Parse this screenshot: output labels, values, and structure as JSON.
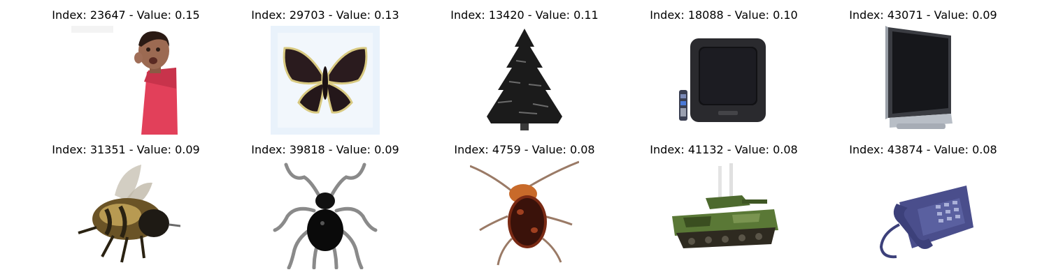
{
  "items": [
    {
      "title": "Index: 23647 - Value: 0.15",
      "icon": "person-icon"
    },
    {
      "title": "Index: 29703 - Value: 0.13",
      "icon": "butterfly-icon"
    },
    {
      "title": "Index: 13420 - Value: 0.11",
      "icon": "tree-icon"
    },
    {
      "title": "Index: 18088 - Value: 0.10",
      "icon": "crt-television-icon"
    },
    {
      "title": "Index: 43071 - Value: 0.09",
      "icon": "flat-television-icon"
    },
    {
      "title": "Index: 31351 - Value: 0.09",
      "icon": "bee-icon"
    },
    {
      "title": "Index: 39818 - Value: 0.09",
      "icon": "spider-icon"
    },
    {
      "title": "Index: 4759 - Value: 0.08",
      "icon": "beetle-icon"
    },
    {
      "title": "Index: 41132 - Value: 0.08",
      "icon": "tank-icon"
    },
    {
      "title": "Index: 43874 - Value: 0.08",
      "icon": "telephone-icon"
    }
  ]
}
